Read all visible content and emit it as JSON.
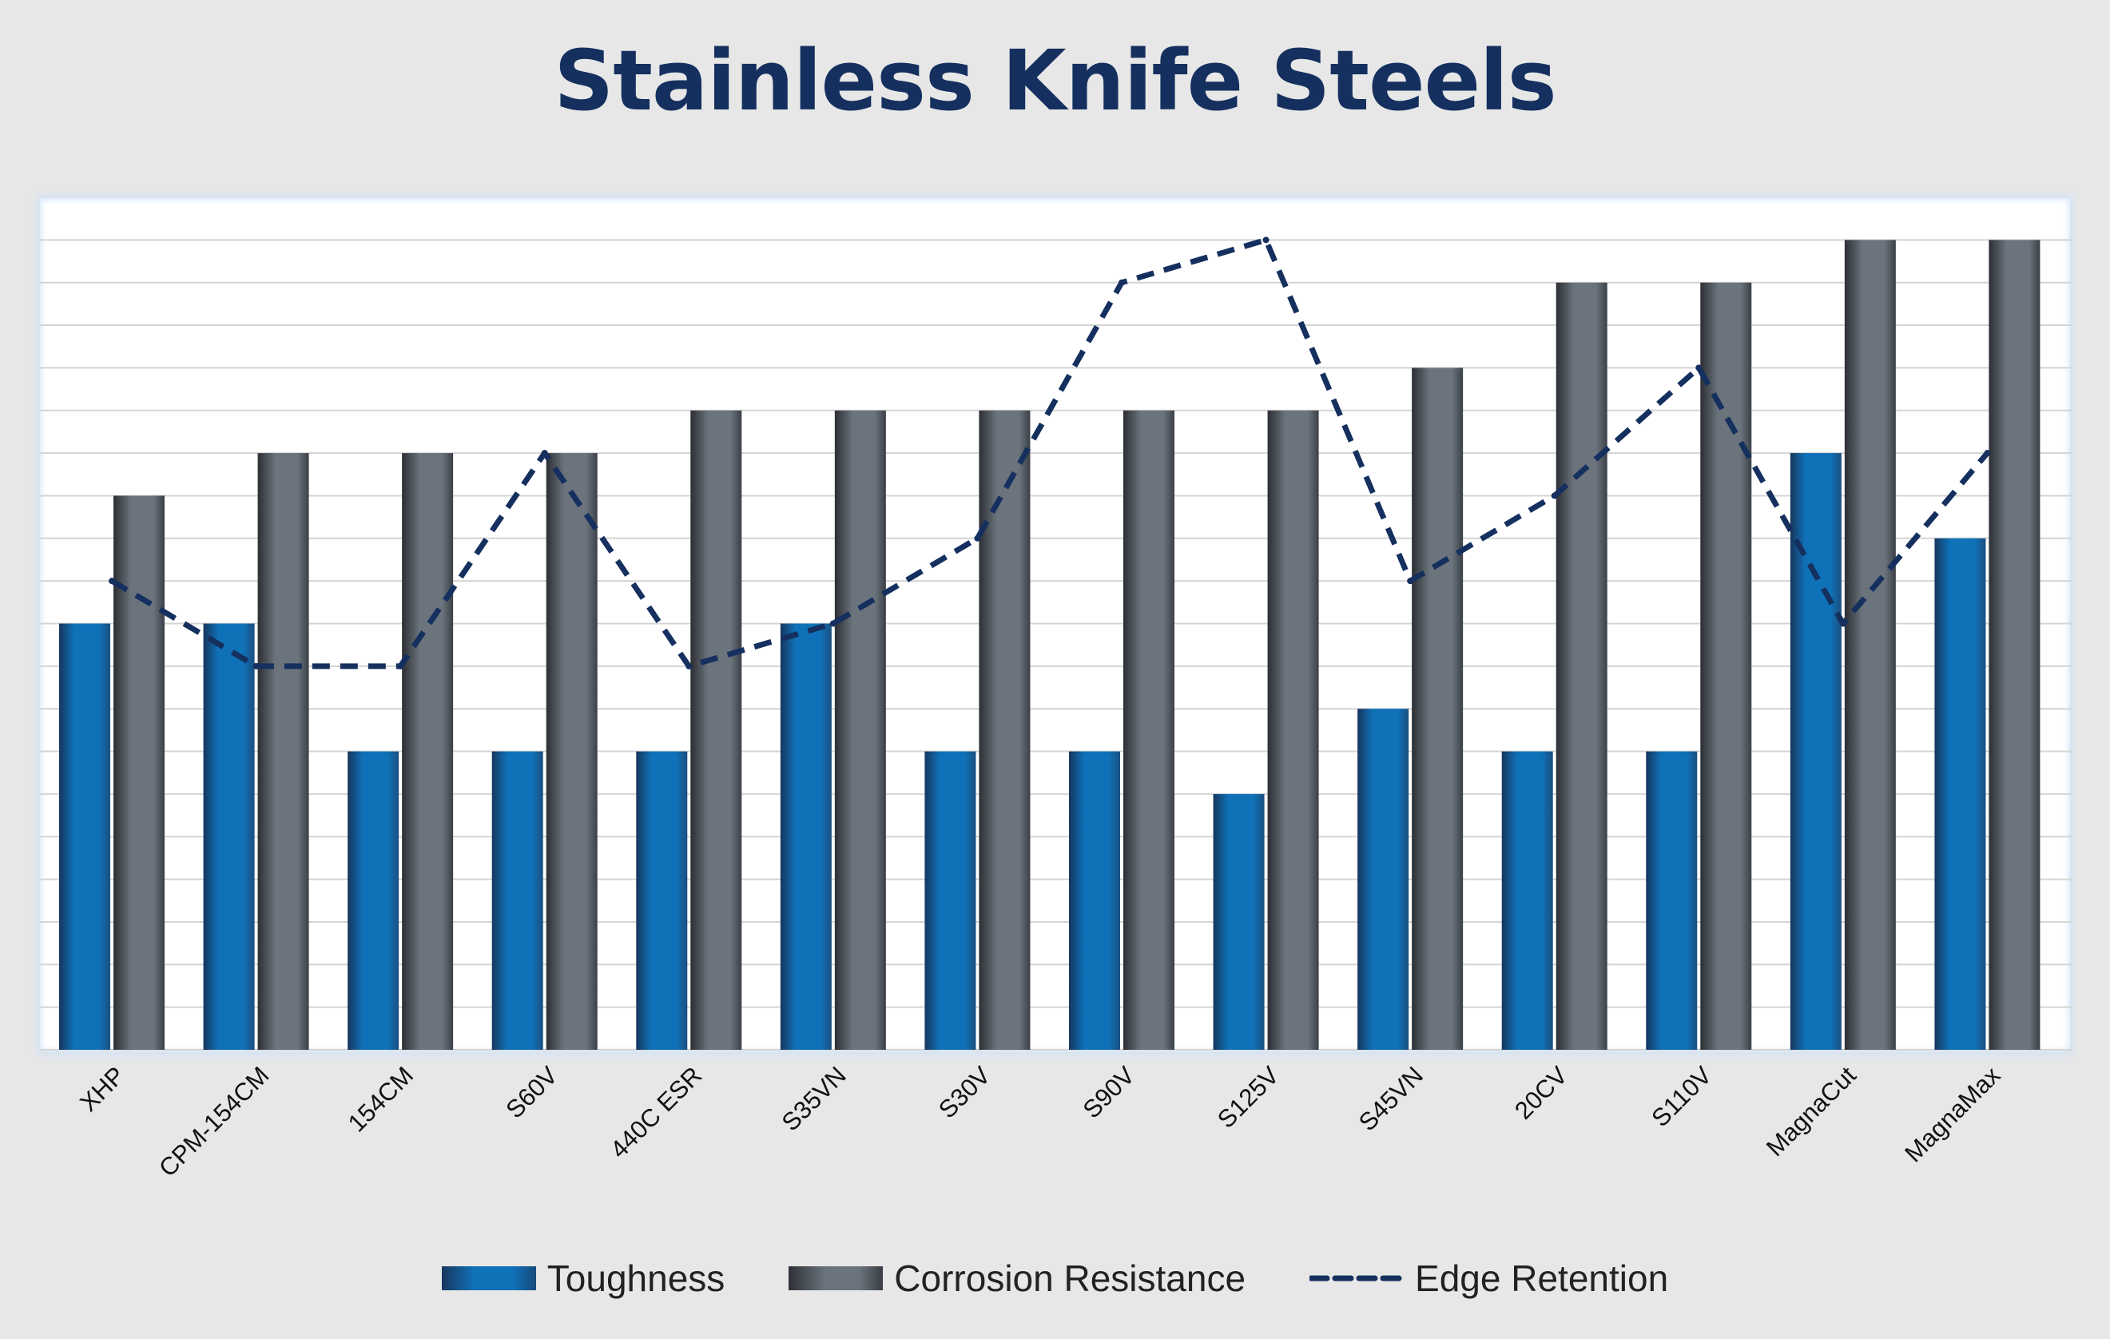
{
  "chart_data": {
    "type": "bar",
    "title": "Stainless Knife Steels",
    "categories": [
      "XHP",
      "CPM-154CM",
      "154CM",
      "S60V",
      "440C ESR",
      "S35VN",
      "S30V",
      "S90V",
      "S125V",
      "S45VN",
      "20CV",
      "S110V",
      "MagnaCut",
      "MagnaMax"
    ],
    "series": [
      {
        "name": "Toughness",
        "kind": "bar",
        "values": [
          5,
          5,
          3.5,
          3.5,
          3.5,
          5,
          3.5,
          3.5,
          3,
          4,
          3.5,
          3.5,
          7,
          6
        ]
      },
      {
        "name": "Corrosion Resistance",
        "kind": "bar",
        "values": [
          6.5,
          7,
          7,
          7,
          7.5,
          7.5,
          7.5,
          7.5,
          7.5,
          8,
          9,
          9,
          9.5,
          9.5
        ]
      },
      {
        "name": "Edge Retention",
        "kind": "line-dashed",
        "values": [
          5.5,
          4.5,
          4.5,
          7,
          4.5,
          5,
          6,
          9,
          9.5,
          5.5,
          6.5,
          8,
          5,
          7
        ]
      }
    ],
    "xlabel": "",
    "ylabel": "",
    "ylim": [
      0,
      10
    ],
    "grid": true,
    "y_tick_labels_visible": false,
    "legend_position": "bottom"
  },
  "colors": {
    "toughness": "#0f72b8",
    "corrosion": "#6b747d",
    "edge": "#15305f",
    "grid": "#d4d4d4",
    "title": "#15305f"
  }
}
